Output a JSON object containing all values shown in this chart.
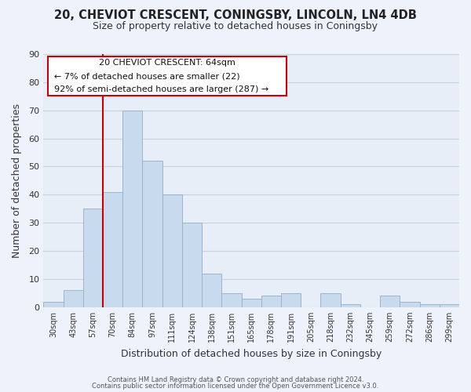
{
  "title_line1": "20, CHEVIOT CRESCENT, CONINGSBY, LINCOLN, LN4 4DB",
  "title_line2": "Size of property relative to detached houses in Coningsby",
  "xlabel": "Distribution of detached houses by size in Coningsby",
  "ylabel": "Number of detached properties",
  "bar_labels": [
    "30sqm",
    "43sqm",
    "57sqm",
    "70sqm",
    "84sqm",
    "97sqm",
    "111sqm",
    "124sqm",
    "138sqm",
    "151sqm",
    "165sqm",
    "178sqm",
    "191sqm",
    "205sqm",
    "218sqm",
    "232sqm",
    "245sqm",
    "259sqm",
    "272sqm",
    "286sqm",
    "299sqm"
  ],
  "bar_values": [
    2,
    6,
    35,
    41,
    70,
    52,
    40,
    30,
    12,
    5,
    3,
    4,
    5,
    0,
    5,
    1,
    0,
    4,
    2,
    1,
    1
  ],
  "bar_color": "#c8daee",
  "bar_edge_color": "#9ab4cc",
  "vline_color": "#cc0000",
  "ylim": [
    0,
    90
  ],
  "yticks": [
    0,
    10,
    20,
    30,
    40,
    50,
    60,
    70,
    80,
    90
  ],
  "annotation_title": "20 CHEVIOT CRESCENT: 64sqm",
  "annotation_line2": "← 7% of detached houses are smaller (22)",
  "annotation_line3": "92% of semi-detached houses are larger (287) →",
  "footer_line1": "Contains HM Land Registry data © Crown copyright and database right 2024.",
  "footer_line2": "Contains public sector information licensed under the Open Government Licence v3.0.",
  "background_color": "#eef2fa",
  "plot_bg_color": "#e8eef8",
  "grid_color": "#c8d0e0",
  "title_color": "#222222",
  "text_color": "#333333"
}
